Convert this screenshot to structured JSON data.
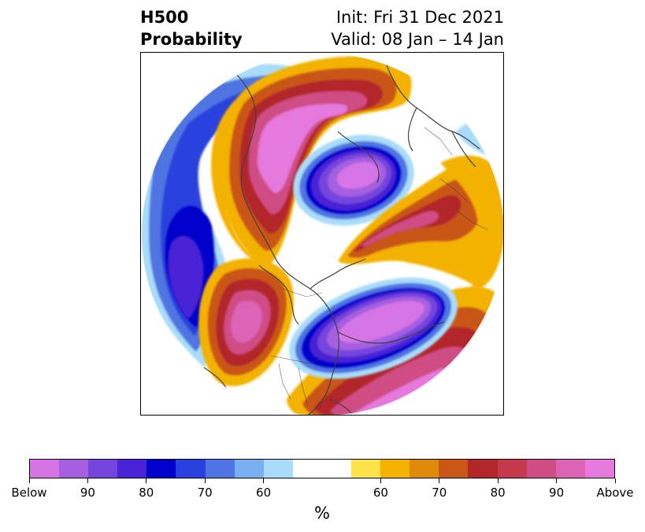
{
  "title": {
    "left_line1": "H500",
    "left_line2": "Probability",
    "right_line1": "Init: Fri 31 Dec 2021",
    "right_line2": "Valid: 08 Jan – 14 Jan"
  },
  "map": {
    "projection": "polar stereographic (north pole)",
    "coastline_color": "#404040",
    "regions": [
      {
        "area": "Gulf of Alaska / Eastern Pacific",
        "anomaly": "below",
        "level": "90"
      },
      {
        "area": "Western Canada / Northwest US",
        "anomaly": "above",
        "level": "Above"
      },
      {
        "area": "Eastern Pacific ridge",
        "anomaly": "above",
        "level": "Above"
      },
      {
        "area": "Eastern Canada / Northeast US",
        "anomaly": "below",
        "level": "Below"
      },
      {
        "area": "Northern Siberia",
        "anomaly": "below",
        "level": "Below"
      },
      {
        "area": "Arctic / Scandinavia",
        "anomaly": "above",
        "level": "90"
      },
      {
        "area": "North Atlantic",
        "anomaly": "above",
        "level": "Above"
      },
      {
        "area": "Eastern Europe",
        "anomaly": "above",
        "level": "60"
      }
    ]
  },
  "colorbar": {
    "colors": [
      "#d674e6",
      "#a55ee0",
      "#7544dd",
      "#4a23d6",
      "#0000cc",
      "#2a42dd",
      "#4f74e3",
      "#78b0f1",
      "#a9dcfb",
      "#ffffff",
      "#ffffff",
      "#fde24a",
      "#f4b200",
      "#e08a0c",
      "#c95716",
      "#b2262a",
      "#c6394d",
      "#cf4d84",
      "#dc63b6",
      "#e679dd"
    ],
    "tick_labels": [
      "Below",
      "90",
      "80",
      "70",
      "60",
      "60",
      "70",
      "80",
      "90",
      "Above"
    ],
    "unit": "%"
  }
}
